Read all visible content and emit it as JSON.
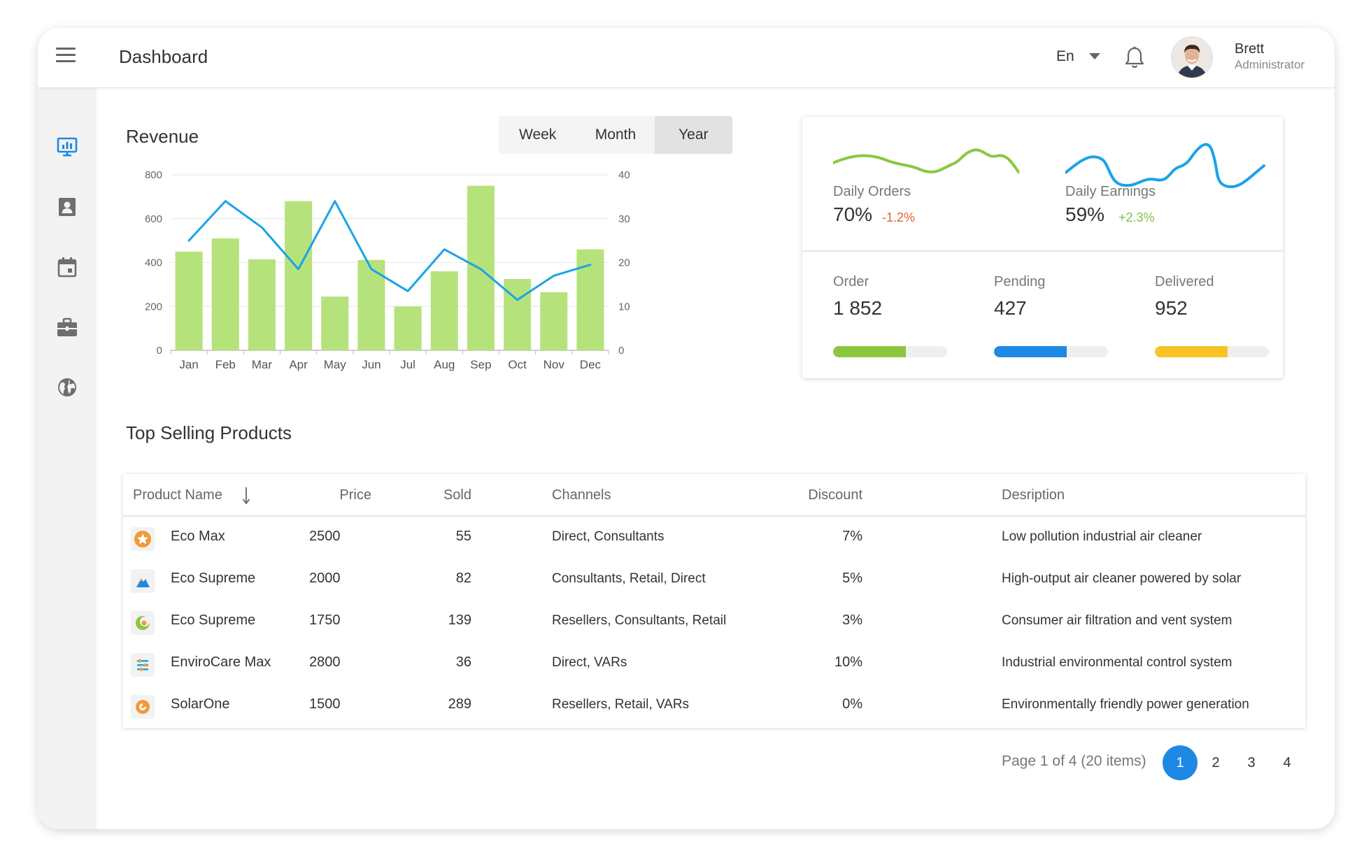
{
  "app": {
    "title": "Dashboard"
  },
  "header": {
    "language": "En",
    "user": {
      "name": "Brett",
      "role": "Administrator"
    }
  },
  "sidebar": {
    "items": [
      {
        "icon": "presentation-chart-icon",
        "active": true
      },
      {
        "icon": "contact-card-icon",
        "active": false
      },
      {
        "icon": "calendar-icon",
        "active": false
      },
      {
        "icon": "briefcase-icon",
        "active": false
      },
      {
        "icon": "globe-icon",
        "active": false
      }
    ]
  },
  "revenue": {
    "title": "Revenue",
    "periods": [
      "Week",
      "Month",
      "Year"
    ],
    "selected_period": "Year"
  },
  "chart_data": {
    "type": "bar",
    "categories": [
      "Jan",
      "Feb",
      "Mar",
      "Apr",
      "May",
      "Jun",
      "Jul",
      "Aug",
      "Sep",
      "Oct",
      "Nov",
      "Dec"
    ],
    "series": [
      {
        "type": "bar",
        "axis": "left",
        "color": "#b6e27c",
        "values": [
          450,
          510,
          415,
          680,
          245,
          412,
          200,
          360,
          750,
          325,
          265,
          460
        ]
      },
      {
        "type": "line",
        "axis": "right",
        "color": "#1aa3e8",
        "values": [
          25,
          34,
          28,
          18.5,
          34,
          18.5,
          13.5,
          23,
          18.5,
          11.5,
          17,
          19.5
        ]
      }
    ],
    "ylim": [
      0,
      800
    ],
    "yticks": [
      0,
      200,
      400,
      600,
      800
    ],
    "y2lim": [
      0,
      40
    ],
    "y2ticks": [
      0,
      10,
      20,
      30,
      40
    ],
    "grid": true
  },
  "daily": {
    "orders": {
      "label": "Daily Orders",
      "value": "70%",
      "delta": "-1.2%",
      "delta_color": "#e8622d",
      "line_color": "#8cc63f"
    },
    "earnings": {
      "label": "Daily Earnings",
      "value": "59%",
      "delta": "+2.3%",
      "delta_color": "#7cc142",
      "line_color": "#1aa3e8"
    }
  },
  "order_stats": [
    {
      "label": "Order",
      "value": "1 852",
      "progress": 0.64,
      "color": "#8cc63f"
    },
    {
      "label": "Pending",
      "value": "427",
      "progress": 0.64,
      "color": "#1e88e5"
    },
    {
      "label": "Delivered",
      "value": "952",
      "progress": 0.64,
      "color": "#f7c325"
    }
  ],
  "products": {
    "title": "Top Selling Products",
    "columns": {
      "name": "Product Name",
      "price": "Price",
      "sold": "Sold",
      "channels": "Channels",
      "discount": "Discount",
      "description": "Desription"
    },
    "sort": {
      "column": "name",
      "direction": "descending"
    },
    "rows": [
      {
        "icon": "star-badge-icon",
        "name": "Eco Max",
        "price": "2500",
        "sold": "55",
        "channels": "Direct, Consultants",
        "discount": "7%",
        "description": "Low pollution industrial air cleaner"
      },
      {
        "icon": "mountain-icon",
        "name": "Eco Supreme",
        "price": "2000",
        "sold": "82",
        "channels": "Consultants, Retail, Direct",
        "discount": "5%",
        "description": "High-output air cleaner powered by solar"
      },
      {
        "icon": "crescent-icon",
        "name": "Eco Supreme",
        "price": "1750",
        "sold": "139",
        "channels": "Resellers, Consultants, Retail",
        "discount": "3%",
        "description": "Consumer air filtration and vent system"
      },
      {
        "icon": "sliders-icon",
        "name": "EnviroCare Max",
        "price": "2800",
        "sold": "36",
        "channels": "Direct, VARs",
        "discount": "10%",
        "description": "Industrial environmental control system"
      },
      {
        "icon": "spiral-icon",
        "name": "SolarOne",
        "price": "1500",
        "sold": "289",
        "channels": "Resellers, Retail, VARs",
        "discount": "0%",
        "description": "Environmentally friendly power generation"
      }
    ]
  },
  "pagination": {
    "info": "Page 1 of 4 (20 items)",
    "pages": [
      "1",
      "2",
      "3",
      "4"
    ],
    "current": "1"
  }
}
